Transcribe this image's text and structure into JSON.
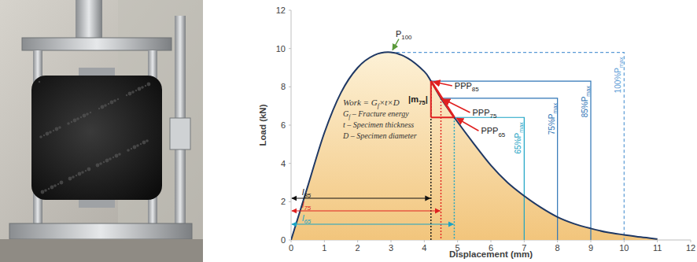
{
  "chart_data": {
    "type": "line",
    "x_label": "Displacement (mm)",
    "y_label": "Load (kN)",
    "xlim": [
      0,
      12
    ],
    "ylim": [
      0,
      12
    ],
    "xticks": [
      0,
      1,
      2,
      3,
      4,
      5,
      6,
      7,
      8,
      9,
      10,
      11,
      12
    ],
    "yticks": [
      0,
      2,
      4,
      6,
      8,
      10,
      12
    ],
    "color": "#1f3864",
    "x": [
      0,
      0.25,
      0.5,
      1,
      1.5,
      2,
      2.5,
      3,
      3.5,
      4,
      4.2,
      4.5,
      4.9,
      5.5,
      6,
      6.5,
      7,
      7.5,
      8,
      8.5,
      9,
      9.5,
      10,
      10.5,
      11
    ],
    "values": [
      0,
      1.4,
      2.8,
      5.6,
      7.7,
      9.0,
      9.65,
      9.8,
      9.5,
      8.8,
      8.3,
      7.4,
      6.4,
      5.0,
      3.9,
      3.0,
      2.3,
      1.7,
      1.2,
      0.85,
      0.6,
      0.4,
      0.27,
      0.15,
      0.05
    ],
    "peak": {
      "label": "P100",
      "x": 3,
      "y": 9.8
    },
    "points": [
      {
        "label": "PPP85",
        "x": 4.2,
        "y": 8.3,
        "length_label": "l85",
        "color": "#111111"
      },
      {
        "label": "PPP75",
        "x": 4.5,
        "y": 7.4,
        "length_label": "l75",
        "color": "#e02020"
      },
      {
        "label": "PPP65",
        "x": 4.9,
        "y": 6.4,
        "length_label": "l65",
        "color": "#1aa3c4"
      }
    ],
    "slope_label": "|m75|",
    "levels": [
      {
        "label": "100%Pmax",
        "y": 9.8,
        "x": 10,
        "color": "#5b9bd5",
        "line_style": "dashed"
      },
      {
        "label": "85%Pmax",
        "y": 8.3,
        "x": 9,
        "color": "#2e75b6",
        "line_style": "solid"
      },
      {
        "label": "75%Pmax",
        "y": 7.4,
        "x": 8,
        "color": "#2e75b6",
        "line_style": "solid"
      },
      {
        "label": "65%Pmax",
        "y": 6.4,
        "x": 7,
        "color": "#1aa3c4",
        "line_style": "solid"
      }
    ],
    "formula": [
      "Work = Gf×t×D",
      "Gf – Fracture energy",
      "t – Specimen thickness",
      "D – Specimen diameter"
    ]
  }
}
